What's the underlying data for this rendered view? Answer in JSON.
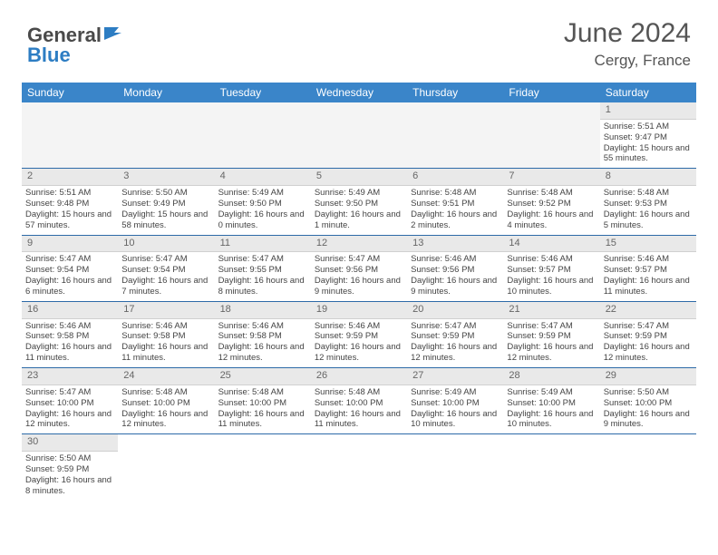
{
  "logo": {
    "text_general": "General",
    "text_blue": "Blue"
  },
  "title": "June 2024",
  "location": "Cergy, France",
  "colors": {
    "header_bg": "#3a85c9",
    "header_text": "#ffffff",
    "daynum_bg": "#e9e9e9",
    "row_divider": "#2d6aa8",
    "text": "#444444",
    "title_text": "#555555",
    "logo_grey": "#4a4a4a",
    "logo_blue": "#2d7dc3"
  },
  "weekdays": [
    "Sunday",
    "Monday",
    "Tuesday",
    "Wednesday",
    "Thursday",
    "Friday",
    "Saturday"
  ],
  "weeks": [
    [
      null,
      null,
      null,
      null,
      null,
      null,
      {
        "d": "1",
        "sr": "Sunrise: 5:51 AM",
        "ss": "Sunset: 9:47 PM",
        "dl": "Daylight: 15 hours and 55 minutes."
      }
    ],
    [
      {
        "d": "2",
        "sr": "Sunrise: 5:51 AM",
        "ss": "Sunset: 9:48 PM",
        "dl": "Daylight: 15 hours and 57 minutes."
      },
      {
        "d": "3",
        "sr": "Sunrise: 5:50 AM",
        "ss": "Sunset: 9:49 PM",
        "dl": "Daylight: 15 hours and 58 minutes."
      },
      {
        "d": "4",
        "sr": "Sunrise: 5:49 AM",
        "ss": "Sunset: 9:50 PM",
        "dl": "Daylight: 16 hours and 0 minutes."
      },
      {
        "d": "5",
        "sr": "Sunrise: 5:49 AM",
        "ss": "Sunset: 9:50 PM",
        "dl": "Daylight: 16 hours and 1 minute."
      },
      {
        "d": "6",
        "sr": "Sunrise: 5:48 AM",
        "ss": "Sunset: 9:51 PM",
        "dl": "Daylight: 16 hours and 2 minutes."
      },
      {
        "d": "7",
        "sr": "Sunrise: 5:48 AM",
        "ss": "Sunset: 9:52 PM",
        "dl": "Daylight: 16 hours and 4 minutes."
      },
      {
        "d": "8",
        "sr": "Sunrise: 5:48 AM",
        "ss": "Sunset: 9:53 PM",
        "dl": "Daylight: 16 hours and 5 minutes."
      }
    ],
    [
      {
        "d": "9",
        "sr": "Sunrise: 5:47 AM",
        "ss": "Sunset: 9:54 PM",
        "dl": "Daylight: 16 hours and 6 minutes."
      },
      {
        "d": "10",
        "sr": "Sunrise: 5:47 AM",
        "ss": "Sunset: 9:54 PM",
        "dl": "Daylight: 16 hours and 7 minutes."
      },
      {
        "d": "11",
        "sr": "Sunrise: 5:47 AM",
        "ss": "Sunset: 9:55 PM",
        "dl": "Daylight: 16 hours and 8 minutes."
      },
      {
        "d": "12",
        "sr": "Sunrise: 5:47 AM",
        "ss": "Sunset: 9:56 PM",
        "dl": "Daylight: 16 hours and 9 minutes."
      },
      {
        "d": "13",
        "sr": "Sunrise: 5:46 AM",
        "ss": "Sunset: 9:56 PM",
        "dl": "Daylight: 16 hours and 9 minutes."
      },
      {
        "d": "14",
        "sr": "Sunrise: 5:46 AM",
        "ss": "Sunset: 9:57 PM",
        "dl": "Daylight: 16 hours and 10 minutes."
      },
      {
        "d": "15",
        "sr": "Sunrise: 5:46 AM",
        "ss": "Sunset: 9:57 PM",
        "dl": "Daylight: 16 hours and 11 minutes."
      }
    ],
    [
      {
        "d": "16",
        "sr": "Sunrise: 5:46 AM",
        "ss": "Sunset: 9:58 PM",
        "dl": "Daylight: 16 hours and 11 minutes."
      },
      {
        "d": "17",
        "sr": "Sunrise: 5:46 AM",
        "ss": "Sunset: 9:58 PM",
        "dl": "Daylight: 16 hours and 11 minutes."
      },
      {
        "d": "18",
        "sr": "Sunrise: 5:46 AM",
        "ss": "Sunset: 9:58 PM",
        "dl": "Daylight: 16 hours and 12 minutes."
      },
      {
        "d": "19",
        "sr": "Sunrise: 5:46 AM",
        "ss": "Sunset: 9:59 PM",
        "dl": "Daylight: 16 hours and 12 minutes."
      },
      {
        "d": "20",
        "sr": "Sunrise: 5:47 AM",
        "ss": "Sunset: 9:59 PM",
        "dl": "Daylight: 16 hours and 12 minutes."
      },
      {
        "d": "21",
        "sr": "Sunrise: 5:47 AM",
        "ss": "Sunset: 9:59 PM",
        "dl": "Daylight: 16 hours and 12 minutes."
      },
      {
        "d": "22",
        "sr": "Sunrise: 5:47 AM",
        "ss": "Sunset: 9:59 PM",
        "dl": "Daylight: 16 hours and 12 minutes."
      }
    ],
    [
      {
        "d": "23",
        "sr": "Sunrise: 5:47 AM",
        "ss": "Sunset: 10:00 PM",
        "dl": "Daylight: 16 hours and 12 minutes."
      },
      {
        "d": "24",
        "sr": "Sunrise: 5:48 AM",
        "ss": "Sunset: 10:00 PM",
        "dl": "Daylight: 16 hours and 12 minutes."
      },
      {
        "d": "25",
        "sr": "Sunrise: 5:48 AM",
        "ss": "Sunset: 10:00 PM",
        "dl": "Daylight: 16 hours and 11 minutes."
      },
      {
        "d": "26",
        "sr": "Sunrise: 5:48 AM",
        "ss": "Sunset: 10:00 PM",
        "dl": "Daylight: 16 hours and 11 minutes."
      },
      {
        "d": "27",
        "sr": "Sunrise: 5:49 AM",
        "ss": "Sunset: 10:00 PM",
        "dl": "Daylight: 16 hours and 10 minutes."
      },
      {
        "d": "28",
        "sr": "Sunrise: 5:49 AM",
        "ss": "Sunset: 10:00 PM",
        "dl": "Daylight: 16 hours and 10 minutes."
      },
      {
        "d": "29",
        "sr": "Sunrise: 5:50 AM",
        "ss": "Sunset: 10:00 PM",
        "dl": "Daylight: 16 hours and 9 minutes."
      }
    ],
    [
      {
        "d": "30",
        "sr": "Sunrise: 5:50 AM",
        "ss": "Sunset: 9:59 PM",
        "dl": "Daylight: 16 hours and 8 minutes."
      },
      null,
      null,
      null,
      null,
      null,
      null
    ]
  ]
}
